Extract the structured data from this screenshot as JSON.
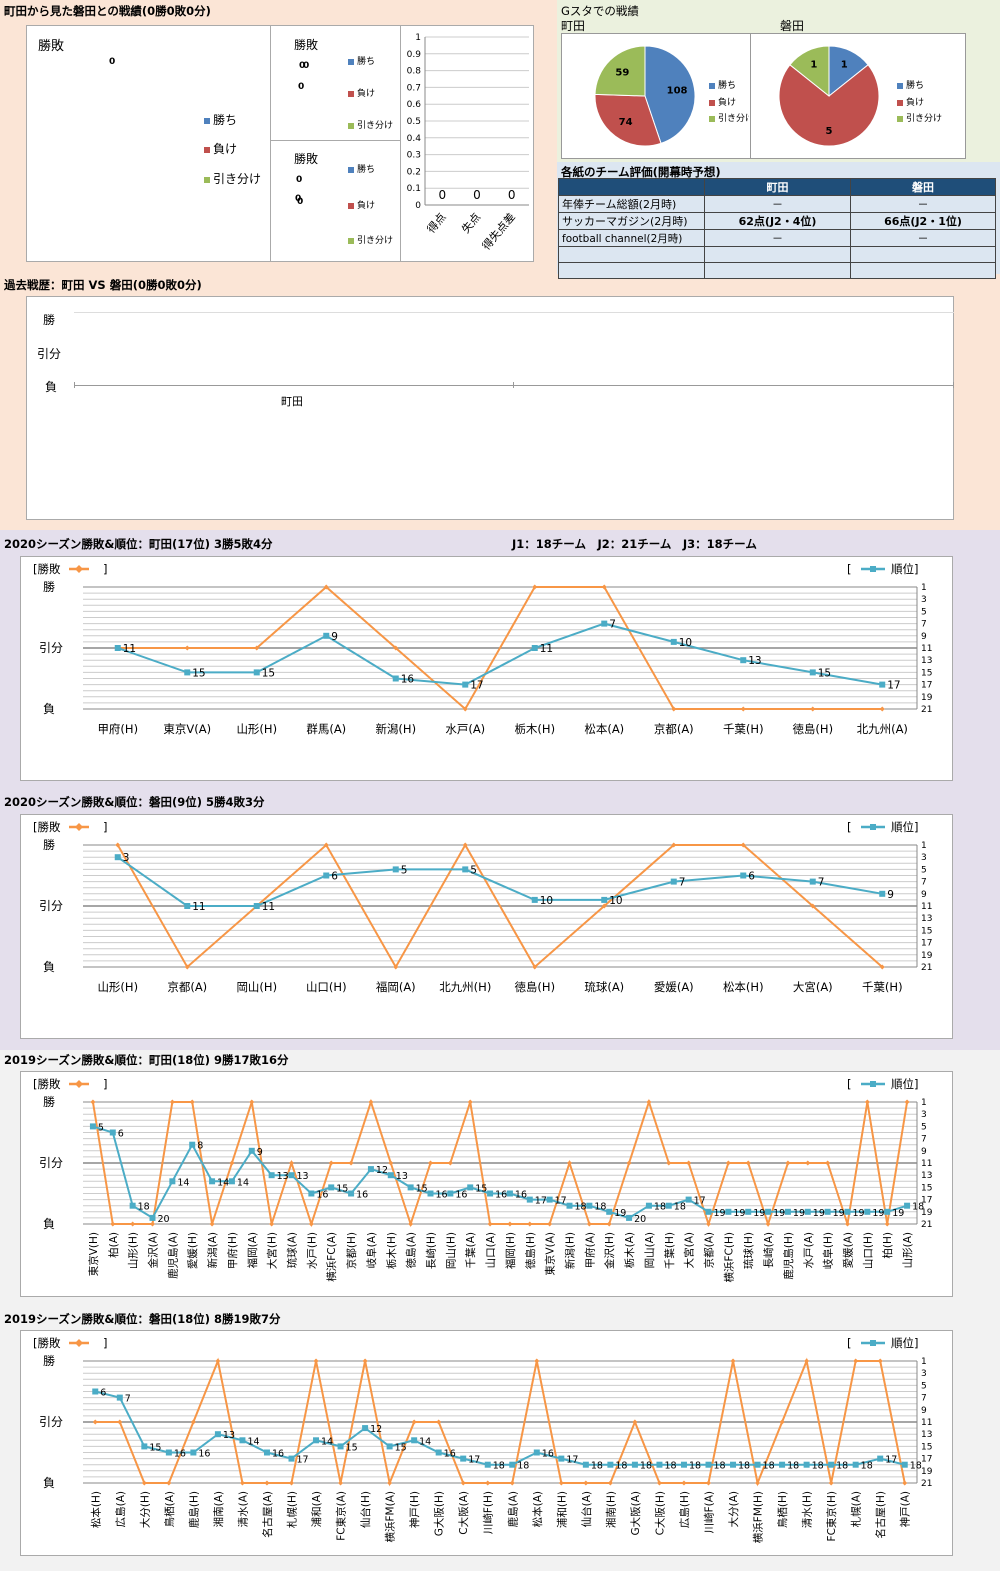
{
  "top": {
    "title": "町田から見た磐田との戦績(0勝0敗0分)",
    "big_chart": {
      "legend_title": "勝敗",
      "value": "0",
      "legend": [
        "勝ち",
        "負け",
        "引き分け"
      ]
    },
    "small_chart_1": {
      "legend_title": "勝敗",
      "values": [
        "0",
        "0",
        "0"
      ],
      "legend": [
        "勝ち",
        "負け",
        "引き分け"
      ]
    },
    "small_chart_2": {
      "legend_title": "勝敗",
      "values": [
        "0",
        "0",
        "0"
      ],
      "legend": [
        "勝ち",
        "負け",
        "引き分け"
      ]
    }
  },
  "gsta": {
    "title": "Gスタでの戦績",
    "left": {
      "team": "町田",
      "values": [
        "108",
        "74",
        "59"
      ],
      "legend": [
        "勝ち",
        "負け",
        "引き分け"
      ]
    },
    "right": {
      "team": "磐田",
      "values": [
        "1",
        "5",
        "1"
      ],
      "legend": [
        "勝ち",
        "負け",
        "引き分け"
      ]
    }
  },
  "eval": {
    "title": "各紙のチーム評価(開幕時予想)",
    "headers": [
      "",
      "町田",
      "磐田"
    ],
    "rows": [
      [
        "年俸チーム総額(2月時)",
        "－",
        "－"
      ],
      [
        "サッカーマガジン(2月時)",
        "62点(J2・4位)",
        "66点(J2・1位)"
      ],
      [
        "football channel(2月時)",
        "－",
        "－"
      ],
      [
        "",
        "",
        ""
      ],
      [
        "",
        "",
        ""
      ]
    ]
  },
  "history": {
    "title": "過去戦歴：町田 VS 磐田(0勝0敗0分)",
    "y_labels": [
      "勝",
      "引分",
      "負"
    ],
    "x_label": "町田"
  },
  "common": {
    "league_info": "J1：18チーム　J2：21チーム　J3：18チーム",
    "legend_result": "[勝敗",
    "legend_result_close": "]",
    "legend_rank_open": "[",
    "legend_rank": "順位]",
    "y_labels": [
      "勝",
      "引分",
      "負"
    ]
  },
  "chart_data": [
    {
      "type": "bar",
      "title": "",
      "categories": [
        "得点",
        "失点",
        "得失点差"
      ],
      "values": [
        0,
        0,
        0
      ],
      "ylim": [
        0,
        1
      ],
      "yticks": [
        "0",
        "0.1",
        "0.2",
        "0.3",
        "0.4",
        "0.5",
        "0.6",
        "0.7",
        "0.8",
        "0.9",
        "1"
      ]
    },
    {
      "type": "pie",
      "title": "町田",
      "labels": [
        "勝ち",
        "負け",
        "引き分け"
      ],
      "values": [
        108,
        74,
        59
      ],
      "colors": [
        "#4f81bd",
        "#c0504d",
        "#9bbb59"
      ]
    },
    {
      "type": "pie",
      "title": "磐田",
      "labels": [
        "勝ち",
        "負け",
        "引き分け"
      ],
      "values": [
        1,
        5,
        1
      ],
      "colors": [
        "#4f81bd",
        "#c0504d",
        "#9bbb59"
      ]
    },
    {
      "type": "line",
      "title": "2020シーズン勝敗&順位：町田(17位) 3勝5敗4分",
      "categories": [
        "甲府(H)",
        "東京V(A)",
        "山形(H)",
        "群馬(A)",
        "新潟(H)",
        "水戸(A)",
        "栃木(H)",
        "松本(A)",
        "京都(A)",
        "千葉(H)",
        "徳島(H)",
        "北九州(A)"
      ],
      "results": [
        0,
        0,
        0,
        1,
        0,
        -1,
        1,
        1,
        -1,
        -1,
        -1,
        -1
      ],
      "ranks": [
        11,
        15,
        15,
        9,
        16,
        17,
        11,
        7,
        10,
        13,
        15,
        17
      ]
    },
    {
      "type": "line",
      "title": "2020シーズン勝敗&順位：磐田(9位) 5勝4敗3分",
      "categories": [
        "山形(H)",
        "京都(A)",
        "岡山(H)",
        "山口(H)",
        "福岡(A)",
        "北九州(H)",
        "徳島(H)",
        "琉球(A)",
        "愛媛(A)",
        "松本(H)",
        "大宮(A)",
        "千葉(H)"
      ],
      "results": [
        1,
        -1,
        0,
        1,
        -1,
        1,
        -1,
        0,
        1,
        1,
        0,
        -1
      ],
      "ranks": [
        3,
        11,
        11,
        6,
        5,
        5,
        10,
        10,
        7,
        6,
        7,
        9
      ]
    },
    {
      "type": "line",
      "title": "2019シーズン勝敗&順位：町田(18位) 9勝17敗16分",
      "categories": [
        "東京V(H)",
        "柏(A)",
        "山形(H)",
        "金沢(A)",
        "鹿児島(A)",
        "愛媛(H)",
        "新潟(A)",
        "甲府(H)",
        "福岡(A)",
        "大宮(H)",
        "琉球(A)",
        "水戸(H)",
        "横浜FC(A)",
        "京都(H)",
        "岐阜(A)",
        "栃木(H)",
        "徳島(A)",
        "長崎(H)",
        "岡山(H)",
        "千葉(A)",
        "山口(A)",
        "福岡(H)",
        "徳島(H)",
        "東京V(A)",
        "新潟(H)",
        "甲府(A)",
        "金沢(H)",
        "栃木(A)",
        "岡山(A)",
        "千葉(H)",
        "大宮(A)",
        "京都(A)",
        "横浜FC(H)",
        "琉球(H)",
        "長崎(A)",
        "鹿児島(H)",
        "水戸(A)",
        "岐阜(H)",
        "愛媛(A)",
        "山口(H)",
        "柏(H)",
        "山形(A)"
      ],
      "results": [
        1,
        -1,
        -1,
        -1,
        1,
        1,
        -1,
        0,
        1,
        -1,
        0,
        -1,
        0,
        0,
        1,
        0,
        -1,
        0,
        0,
        1,
        -1,
        -1,
        -1,
        -1,
        0,
        -1,
        -1,
        0,
        1,
        0,
        0,
        -1,
        0,
        0,
        -1,
        0,
        0,
        0,
        -1,
        1,
        -1,
        1
      ],
      "ranks": [
        5,
        6,
        18,
        20,
        14,
        8,
        14,
        14,
        9,
        13,
        13,
        16,
        15,
        16,
        12,
        13,
        15,
        16,
        16,
        15,
        16,
        16,
        17,
        17,
        18,
        18,
        19,
        20,
        18,
        18,
        17,
        19,
        19,
        19,
        19,
        19,
        19,
        19,
        19,
        19,
        19,
        18
      ]
    },
    {
      "type": "line",
      "title": "2019シーズン勝敗&順位：磐田(18位) 8勝19敗7分",
      "categories": [
        "松本(H)",
        "広島(A)",
        "大分(H)",
        "鳥栖(A)",
        "鹿島(H)",
        "湘南(A)",
        "清水(A)",
        "名古屋(A)",
        "札幌(H)",
        "浦和(A)",
        "FC東京(A)",
        "仙台(H)",
        "横浜FM(A)",
        "神戸(H)",
        "G大阪(H)",
        "C大阪(A)",
        "川崎F(H)",
        "鹿島(A)",
        "松本(A)",
        "浦和(H)",
        "仙台(A)",
        "湘南(H)",
        "G大阪(A)",
        "C大阪(H)",
        "広島(H)",
        "川崎F(A)",
        "大分(A)",
        "横浜FM(H)",
        "鳥栖(H)",
        "清水(H)",
        "FC東京(H)",
        "札幌(A)",
        "名古屋(H)",
        "神戸(A)"
      ],
      "results": [
        0,
        0,
        -1,
        -1,
        0,
        1,
        -1,
        -1,
        -1,
        1,
        -1,
        1,
        -1,
        0,
        0,
        -1,
        -1,
        -1,
        1,
        -1,
        -1,
        -1,
        0,
        -1,
        -1,
        -1,
        1,
        -1,
        0,
        1,
        -1,
        1,
        1,
        -1
      ],
      "ranks": [
        6,
        7,
        15,
        16,
        16,
        13,
        14,
        16,
        17,
        14,
        15,
        12,
        15,
        14,
        16,
        17,
        18,
        18,
        16,
        17,
        18,
        18,
        18,
        18,
        18,
        18,
        18,
        18,
        18,
        18,
        18,
        18,
        17,
        18
      ]
    }
  ]
}
